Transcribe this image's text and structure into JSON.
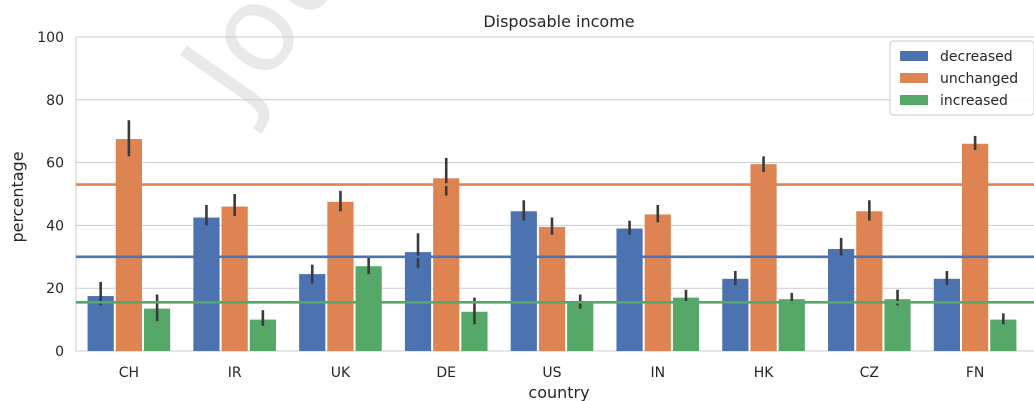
{
  "chart_data": {
    "type": "bar",
    "title": "Disposable income",
    "xlabel": "country",
    "ylabel": "percentage",
    "ylim": [
      0,
      100
    ],
    "yticks": [
      0,
      20,
      40,
      60,
      80,
      100
    ],
    "grid": true,
    "legend_position": "top-right",
    "categories": [
      "CH",
      "IR",
      "UK",
      "DE",
      "US",
      "IN",
      "HK",
      "CZ",
      "FN"
    ],
    "series": [
      {
        "name": "decreased",
        "color": "#4c72b0",
        "values": [
          17.5,
          42.5,
          24.5,
          31.5,
          44.5,
          39.0,
          23.0,
          32.5,
          23.0
        ],
        "err_low": [
          14.5,
          40.0,
          21.5,
          26.5,
          41.5,
          37.0,
          21.0,
          30.0,
          21.0
        ],
        "err_high": [
          22.0,
          46.5,
          27.5,
          37.5,
          48.0,
          41.5,
          25.5,
          36.0,
          25.5
        ],
        "mean_line": 30.0
      },
      {
        "name": "unchanged",
        "color": "#dd8452",
        "values": [
          67.5,
          46.0,
          47.5,
          55.0,
          39.5,
          43.5,
          59.5,
          44.5,
          66.0
        ],
        "err_low": [
          62.0,
          43.0,
          44.5,
          49.5,
          37.0,
          41.0,
          57.0,
          41.5,
          64.0
        ],
        "err_high": [
          73.5,
          50.0,
          51.0,
          61.5,
          42.5,
          46.5,
          62.0,
          48.0,
          68.5
        ],
        "mean_line": 53.0
      },
      {
        "name": "increased",
        "color": "#55a868",
        "values": [
          13.5,
          10.0,
          27.0,
          12.5,
          15.5,
          17.0,
          16.5,
          16.5,
          10.0
        ],
        "err_low": [
          9.5,
          8.0,
          24.5,
          8.5,
          13.5,
          15.5,
          15.0,
          14.5,
          8.5
        ],
        "err_high": [
          18.0,
          13.0,
          30.0,
          17.0,
          18.0,
          19.5,
          18.5,
          19.5,
          12.0
        ],
        "mean_line": 15.5
      }
    ]
  },
  "watermark": "Jou"
}
